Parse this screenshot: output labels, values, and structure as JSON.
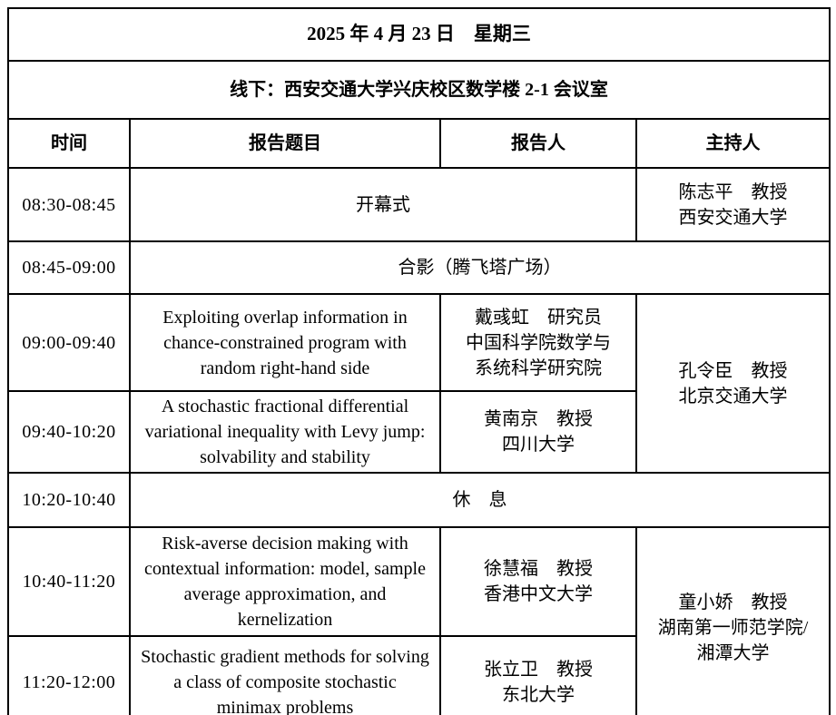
{
  "header": {
    "date": "2025 年 4 月 23 日　星期三",
    "venue": "线下：西安交通大学兴庆校区数学楼 2-1 会议室"
  },
  "columns": {
    "time": "时间",
    "title": "报告题目",
    "speaker": "报告人",
    "chair": "主持人"
  },
  "rows": [
    {
      "time": "08:30-08:45",
      "event": "开幕式",
      "chair": "陈志平　教授\n西安交通大学"
    },
    {
      "time": "08:45-09:00",
      "event": "合影（腾飞塔广场）"
    },
    {
      "time": "09:00-09:40",
      "title": "Exploiting overlap information in chance-constrained program with random right-hand side",
      "speaker": "戴彧虹　研究员\n中国科学院数学与\n系统科学研究院",
      "chair": "孔令臣　教授\n北京交通大学"
    },
    {
      "time": "09:40-10:20",
      "title": "A stochastic fractional differential variational inequality with Levy jump: solvability and stability",
      "speaker": "黄南京　教授\n四川大学"
    },
    {
      "time": "10:20-10:40",
      "event": "休　息"
    },
    {
      "time": "10:40-11:20",
      "title": "Risk-averse decision making with contextual information: model, sample average approximation, and kernelization",
      "speaker": "徐慧福　教授\n香港中文大学",
      "chair": "童小娇　教授\n湖南第一师范学院/\n湘潭大学"
    },
    {
      "time": "11:20-12:00",
      "title": "Stochastic gradient methods for solving a class of composite stochastic minimax problems",
      "speaker": "张立卫　教授\n东北大学"
    }
  ],
  "colors": {
    "border": "#000000",
    "background": "#ffffff",
    "text": "#000000"
  }
}
